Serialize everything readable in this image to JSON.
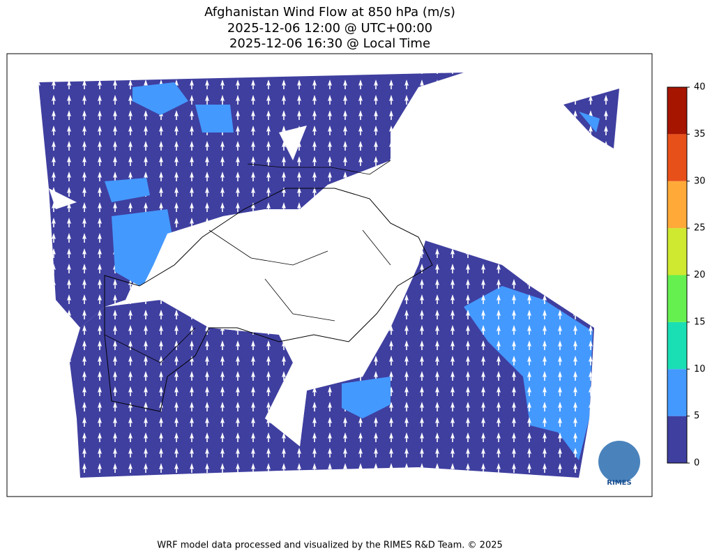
{
  "title": [
    "Afghanistan Wind Flow at 850 hPa (m/s)",
    "2025-12-06 12:00 @ UTC+00:00",
    "2025-12-06 16:30 @ Local Time"
  ],
  "colorbar": {
    "lim": [
      0,
      40
    ],
    "ticks": [
      0,
      5,
      10,
      15,
      20,
      25,
      30,
      35,
      40
    ],
    "colors": [
      "#3f3fa0",
      "#4499ff",
      "#1adfb4",
      "#66f050",
      "#cfe830",
      "#ffaa38",
      "#e8501a",
      "#a51500"
    ]
  },
  "logo": "RIMES",
  "footer": "WRF model data processed and visualized by the RIMES R&D Team. © 2025"
}
